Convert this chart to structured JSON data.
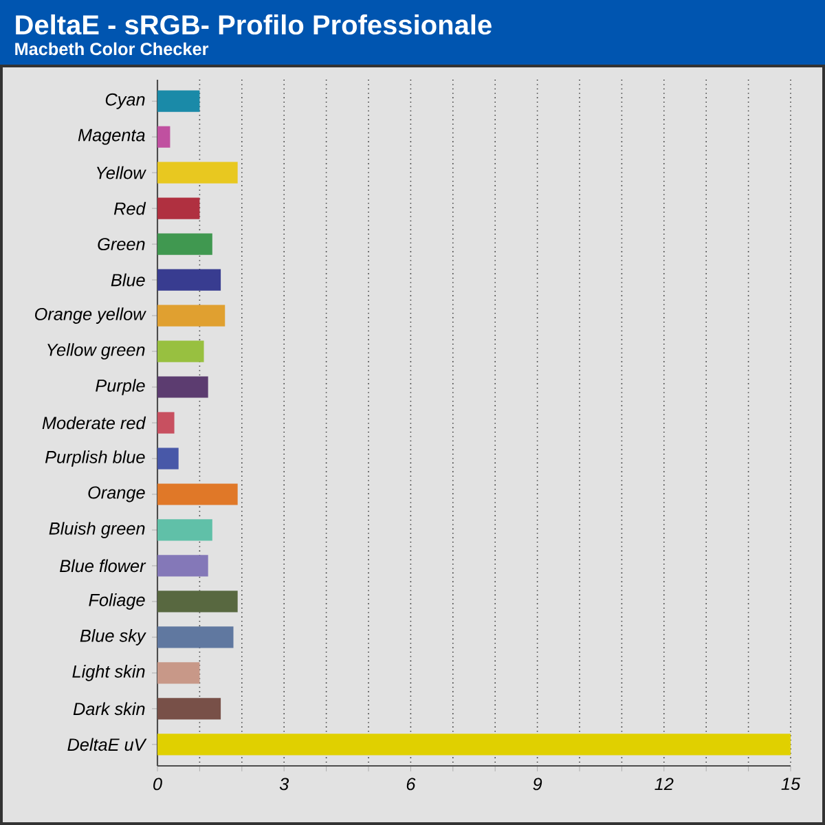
{
  "chart_data": {
    "type": "bar",
    "orientation": "horizontal",
    "title": "DeltaE - sRGB- Profilo Professionale",
    "subtitle": "Macbeth Color Checker",
    "categories": [
      "Cyan",
      "Magenta",
      "Yellow",
      "Red",
      "Green",
      "Blue",
      "Orange yellow",
      "Yellow green",
      "Purple",
      "Moderate red",
      "Purplish blue",
      "Orange",
      "Bluish green",
      "Blue flower",
      "Foliage",
      "Blue sky",
      "Light skin",
      "Dark skin",
      "DeltaE uV"
    ],
    "values": [
      1.0,
      0.3,
      1.9,
      1.0,
      1.3,
      1.5,
      1.6,
      1.1,
      1.2,
      0.4,
      0.5,
      1.9,
      1.3,
      1.2,
      1.9,
      1.8,
      1.0,
      1.5,
      15
    ],
    "colors": [
      "#1a8aa8",
      "#c050a0",
      "#e8c820",
      "#b03040",
      "#409850",
      "#383c90",
      "#e0a030",
      "#98c040",
      "#5c3c70",
      "#c85060",
      "#4858a8",
      "#e07828",
      "#60c0a8",
      "#8478b8",
      "#586840",
      "#6078a0",
      "#c89888",
      "#785048",
      "#e0d000"
    ],
    "xlim": [
      0,
      15
    ],
    "xticks": [
      0,
      {
        "value": 1,
        "label": null
      },
      {
        "value": 2,
        "label": null
      },
      3,
      {
        "value": 4,
        "label": null
      },
      {
        "value": 5,
        "label": null
      },
      6,
      {
        "value": 7,
        "label": null
      },
      {
        "value": 8,
        "label": null
      },
      9,
      {
        "value": 10,
        "label": null
      },
      {
        "value": 11,
        "label": null
      },
      12,
      {
        "value": 13,
        "label": null
      },
      {
        "value": 14,
        "label": null
      },
      15
    ],
    "grid": "x"
  }
}
